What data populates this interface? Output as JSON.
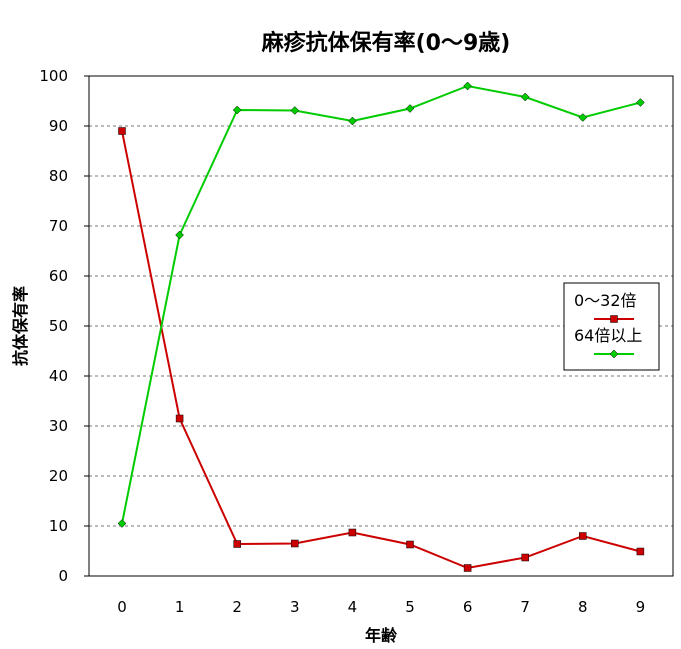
{
  "chart_data": {
    "type": "line",
    "title": "麻疹抗体保有率(0～9歳)",
    "xlabel": "年齢",
    "ylabel": "抗体保有率",
    "x": [
      0,
      1,
      2,
      3,
      4,
      5,
      6,
      7,
      8,
      9
    ],
    "x_tick_labels": [
      "0",
      "1",
      "2",
      "3",
      "4",
      "5",
      "6",
      "7",
      "8",
      "9"
    ],
    "ylim": [
      0,
      100
    ],
    "y_ticks": [
      0,
      10,
      20,
      30,
      40,
      50,
      60,
      70,
      80,
      90,
      100
    ],
    "y_tick_labels": [
      "0",
      "10",
      "20",
      "30",
      "40",
      "50",
      "60",
      "70",
      "80",
      "90",
      "100"
    ],
    "grid": "horizontal dashed",
    "legend_position": "right",
    "series": [
      {
        "name": "0～32倍",
        "color": "#cc0000",
        "marker": "square",
        "values": [
          89.0,
          31.5,
          6.4,
          6.5,
          8.7,
          6.3,
          1.6,
          3.7,
          8.0,
          4.9
        ]
      },
      {
        "name": "64倍以上",
        "color": "#00cc00",
        "marker": "diamond",
        "values": [
          10.5,
          68.2,
          93.2,
          93.1,
          91.0,
          93.5,
          98.0,
          95.8,
          91.7,
          94.7
        ]
      }
    ]
  }
}
